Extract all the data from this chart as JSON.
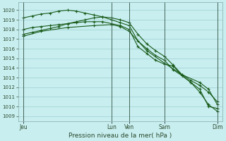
{
  "xlabel": "Pression niveau de la mer( hPa )",
  "bg_color": "#c8eef0",
  "grid_color": "#9ecece",
  "line_color": "#1a5c1a",
  "ylim": [
    1008.5,
    1020.8
  ],
  "yticks": [
    1009,
    1010,
    1011,
    1012,
    1013,
    1014,
    1015,
    1016,
    1017,
    1018,
    1019,
    1020
  ],
  "xtick_labels": [
    "Jeu",
    "Lun",
    "Ven",
    "Sam",
    "Dim"
  ],
  "xtick_positions": [
    0,
    5.0,
    6.0,
    8.0,
    11.0
  ],
  "vlines": [
    0,
    5.0,
    6.0,
    8.0,
    11.0
  ],
  "total_x": 11.0,
  "line1_x": [
    0,
    0.5,
    1.0,
    1.5,
    2.0,
    2.5,
    3.0,
    3.5,
    4.0,
    4.5,
    5.0,
    5.5,
    6.0,
    6.5,
    7.0,
    7.5,
    8.0,
    8.5,
    9.0,
    9.5,
    10.0,
    10.5,
    11.0
  ],
  "line1_y": [
    1017.5,
    1017.7,
    1017.9,
    1018.1,
    1018.3,
    1018.6,
    1018.8,
    1019.0,
    1019.2,
    1019.3,
    1019.2,
    1019.0,
    1018.7,
    1017.5,
    1016.5,
    1015.8,
    1015.2,
    1014.3,
    1013.3,
    1012.7,
    1012.2,
    1011.5,
    1010.5
  ],
  "line2_x": [
    0,
    0.5,
    1.0,
    1.5,
    2.0,
    2.5,
    3.0,
    3.5,
    4.0,
    4.5,
    5.0,
    5.5,
    6.0,
    6.5,
    7.0,
    7.5,
    8.0,
    8.5,
    9.0,
    9.5,
    10.0,
    10.5,
    11.0
  ],
  "line2_y": [
    1019.2,
    1019.4,
    1019.6,
    1019.7,
    1019.9,
    1020.0,
    1019.9,
    1019.7,
    1019.5,
    1019.3,
    1019.0,
    1018.7,
    1018.4,
    1016.8,
    1016.0,
    1015.3,
    1014.8,
    1013.8,
    1013.2,
    1012.5,
    1011.5,
    1010.2,
    1009.5
  ],
  "line3_x": [
    0,
    0.5,
    1.0,
    1.5,
    2.0,
    2.5,
    3.0,
    3.5,
    4.0,
    4.5,
    5.0,
    5.5,
    6.0,
    6.5,
    7.0,
    7.5,
    8.0,
    8.5,
    9.0,
    9.5,
    10.0,
    10.5,
    11.0
  ],
  "line3_y": [
    1018.0,
    1018.2,
    1018.3,
    1018.4,
    1018.5,
    1018.6,
    1018.7,
    1018.8,
    1018.8,
    1018.8,
    1018.6,
    1018.4,
    1018.0,
    1016.2,
    1015.5,
    1014.8,
    1014.4,
    1014.2,
    1013.2,
    1012.5,
    1011.8,
    1010.0,
    1009.8
  ],
  "line4_x": [
    0,
    1.0,
    2.5,
    4.0,
    5.0,
    5.5,
    6.0,
    7.0,
    8.0,
    9.0,
    10.0,
    10.5,
    11.0
  ],
  "line4_y": [
    1017.3,
    1017.8,
    1018.2,
    1018.4,
    1018.5,
    1018.3,
    1017.8,
    1015.8,
    1014.5,
    1013.3,
    1012.5,
    1011.8,
    1010.2
  ]
}
